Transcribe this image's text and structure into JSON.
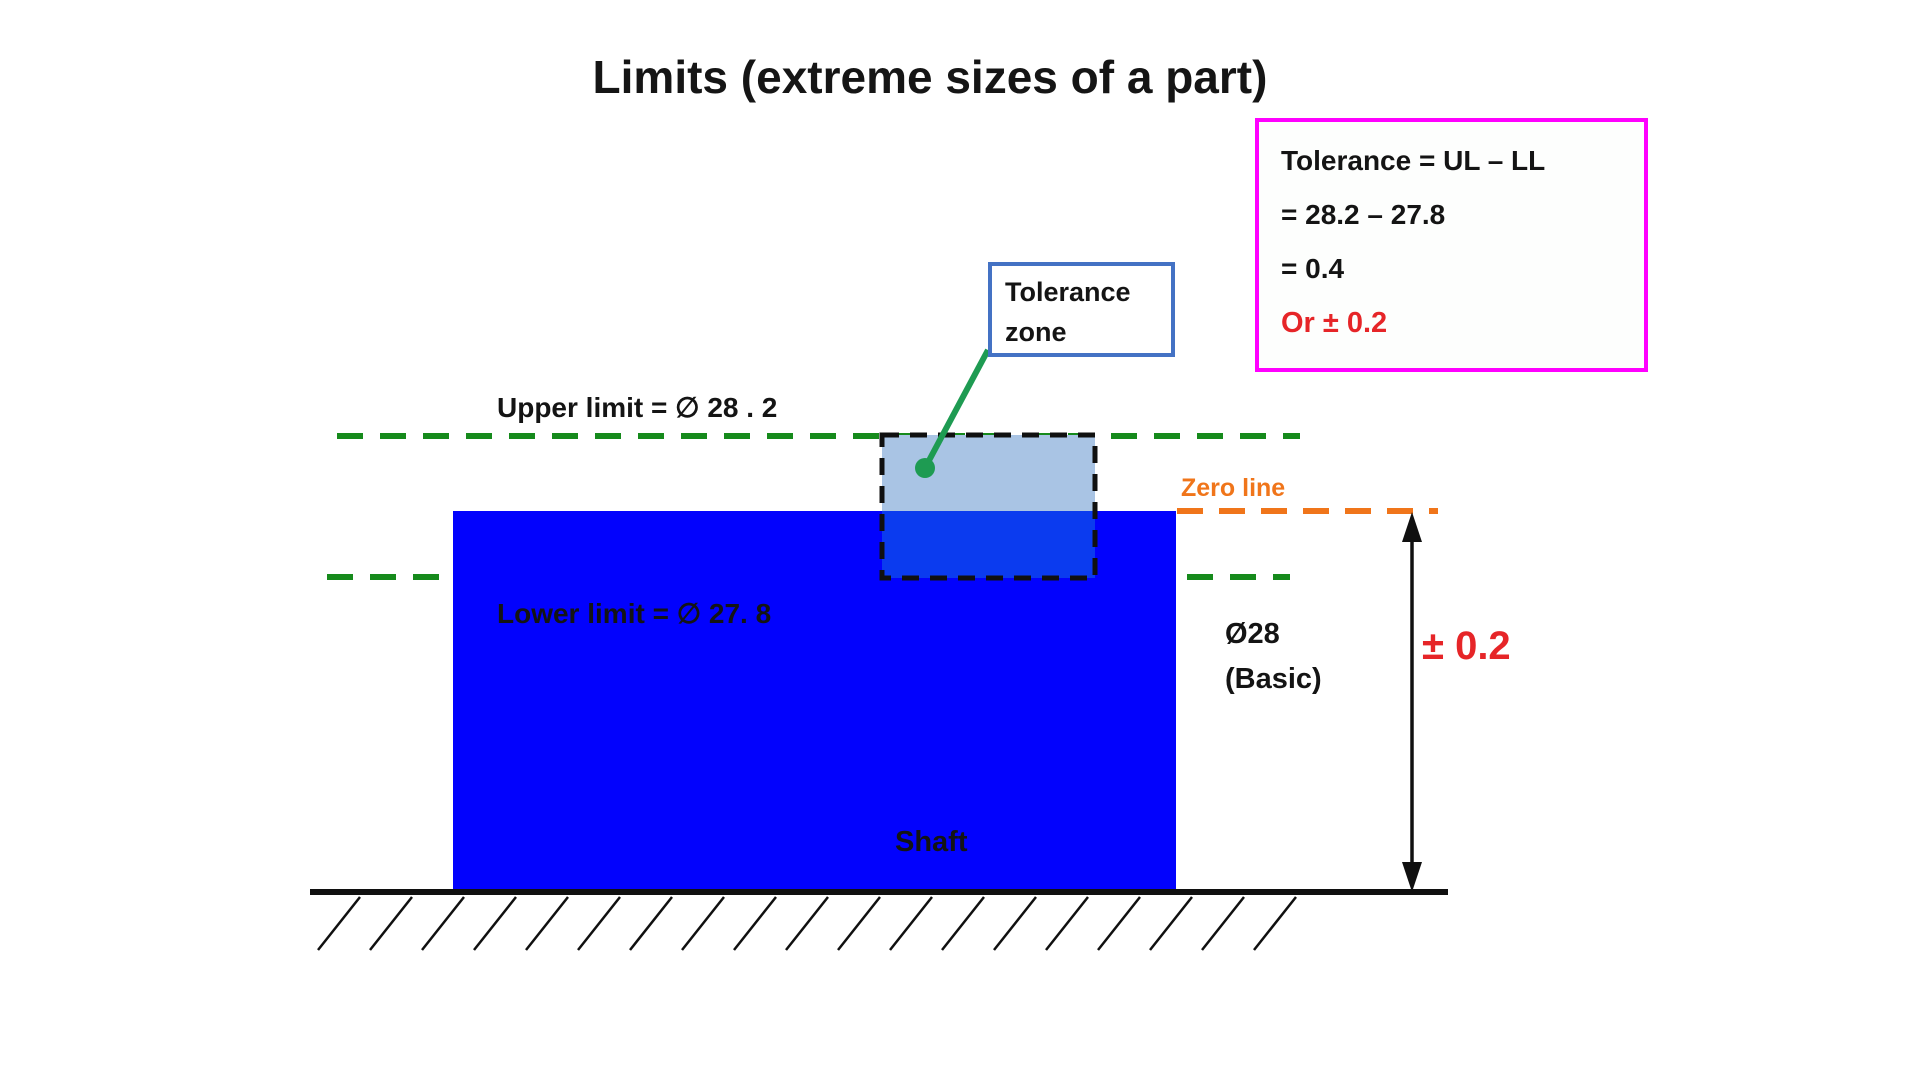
{
  "title": "Limits (extreme sizes of a part)",
  "formula_box": {
    "line1": "Tolerance = UL – LL",
    "line2": "= 28.2 – 27.8",
    "line3": "= 0.4",
    "line4": "Or ± 0.2"
  },
  "callout": {
    "line1": "Tolerance",
    "line2": "zone"
  },
  "labels": {
    "upper_limit": "Upper limit = ∅ 28 . 2",
    "lower_limit": "Lower limit = ∅ 27. 8",
    "zero_line": "Zero line",
    "shaft": "Shaft",
    "basic_size_line1": "Ø28",
    "basic_size_line2": "(Basic)",
    "tolerance_value": "± 0.2"
  },
  "values": {
    "upper_limit_diameter": "28.2",
    "lower_limit_diameter": "27.8",
    "basic_diameter": "28",
    "tolerance": "0.4",
    "tolerance_plus_minus": "0.2"
  },
  "colors": {
    "formula_box_border": "#ff00ff",
    "callout_box_border": "#4472c4",
    "limit_dash_green": "#168a1c",
    "zero_line_orange": "#f0751a",
    "shaft_blue": "#0202fd",
    "tolerance_zone_upper_fill": "#a9c4e4",
    "tolerance_zone_lower_fill": "#0b3bef",
    "callout_line_green": "#1e9b52",
    "accent_red": "#e62528",
    "ink_black": "#141414"
  }
}
